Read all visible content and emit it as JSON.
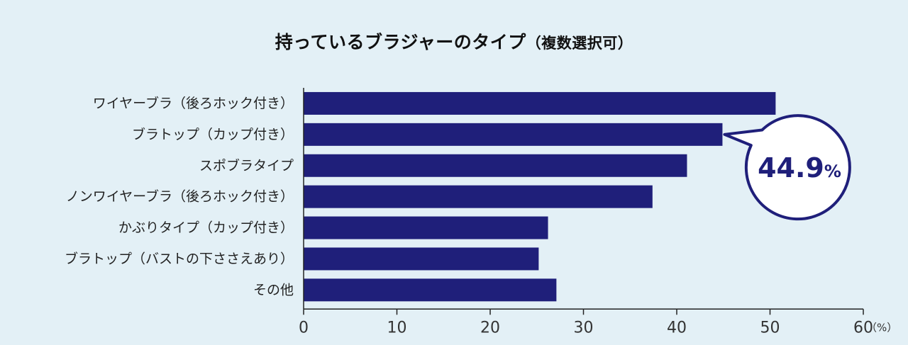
{
  "chart_data": {
    "type": "bar",
    "orientation": "horizontal",
    "title": "持っているブラジャーのタイプ",
    "title_note": "（複数選択可）",
    "categories": [
      "ワイヤーブラ（後ろホック付き）",
      "ブラトップ（カップ付き）",
      "スポブラタイプ",
      "ノンワイヤーブラ（後ろホック付き）",
      "かぶりタイプ（カップ付き）",
      "ブラトップ（バストの下ささえあり）",
      "その他"
    ],
    "values": [
      50.6,
      44.9,
      41.1,
      37.4,
      26.2,
      25.2,
      27.1
    ],
    "xlim": [
      0,
      60
    ],
    "x_ticks": [
      "0",
      "10",
      "20",
      "30",
      "40",
      "50",
      "60"
    ],
    "x_unit": "（%）",
    "grid": false,
    "bar_color": "#1f1f7a",
    "callout": {
      "category_index": 1,
      "value_text": "44.9",
      "unit_text": "%"
    }
  }
}
